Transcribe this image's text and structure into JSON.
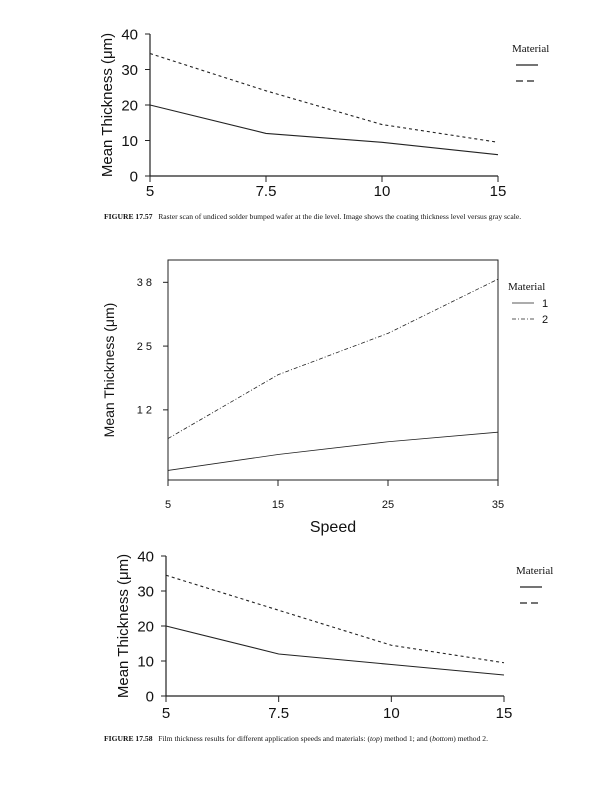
{
  "charts": [
    {
      "chart_data": {
        "type": "line",
        "x": [
          "5",
          "7.5",
          "10",
          "15"
        ],
        "series": [
          {
            "name": "",
            "style": "solid",
            "values": [
              20,
              12,
              9.5,
              6
            ]
          },
          {
            "name": "",
            "style": "dashed",
            "values": [
              34.5,
              24,
              14.5,
              9.5
            ]
          }
        ],
        "ylabel": "Mean Thickness (μm)",
        "xlabel": "",
        "yticks": [
          "0",
          "10",
          "20",
          "30",
          "40"
        ],
        "ylim": [
          0,
          40
        ],
        "legend_title": "Material",
        "grid": false,
        "legend_position": "right"
      }
    },
    {
      "chart_data": {
        "type": "line",
        "x": [
          "5",
          "15",
          "25",
          "35"
        ],
        "series": [
          {
            "name": "1",
            "style": "solid",
            "values": [
              1,
              6,
              10,
              13
            ]
          },
          {
            "name": "2",
            "style": "dashed",
            "values": [
              11,
              31,
              44,
              61
            ]
          }
        ],
        "ylabel": "Mean Thickness (μm)",
        "xlabel": "Speed",
        "yticks": [
          "1 2",
          "2 5",
          "3 8"
        ],
        "ytick_values": [
          20,
          40,
          60
        ],
        "ylim": [
          -2,
          67
        ],
        "legend_title": "Material",
        "grid": false,
        "legend_position": "right"
      }
    },
    {
      "chart_data": {
        "type": "line",
        "x": [
          "5",
          "7.5",
          "10",
          "15"
        ],
        "series": [
          {
            "name": "",
            "style": "solid",
            "values": [
              20,
              12,
              9,
              6
            ]
          },
          {
            "name": "",
            "style": "dashed",
            "values": [
              34.5,
              24.5,
              14.5,
              9.5
            ]
          }
        ],
        "ylabel": "Mean Thickness (μm)",
        "xlabel": "",
        "yticks": [
          "0",
          "10",
          "20",
          "30",
          "40"
        ],
        "ylim": [
          0,
          40
        ],
        "legend_title": "Material",
        "grid": false,
        "legend_position": "right"
      }
    }
  ],
  "captions": {
    "fig57_label": "FIGURE 17.57",
    "fig57_text": "Raster scan of undiced solder bumped wafer at the die level. Image shows the coating thickness level versus gray scale.",
    "fig58_label": "FIGURE 17.58",
    "fig58_text_a": "Film thickness results for different application speeds and materials: (",
    "fig58_top": "top",
    "fig58_text_b": ") method 1; and (",
    "fig58_bottom": "bottom",
    "fig58_text_c": ") method 2."
  }
}
